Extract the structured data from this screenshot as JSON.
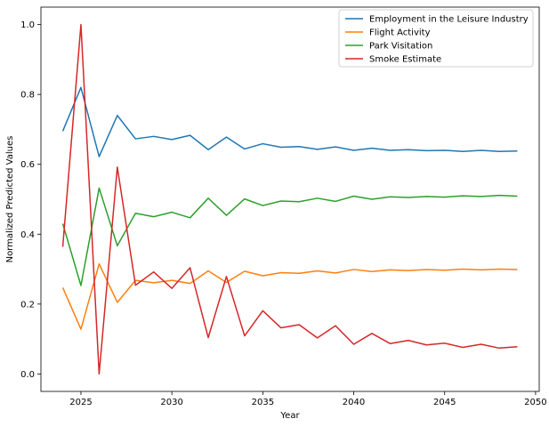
{
  "chart_data": {
    "type": "line",
    "xlabel": "Year",
    "ylabel": "Normalized Predicted Values",
    "xlim": [
      2022.8,
      2050.2
    ],
    "ylim": [
      -0.05,
      1.05
    ],
    "xticks": [
      2025,
      2030,
      2035,
      2040,
      2045,
      2050
    ],
    "yticks": [
      0.0,
      0.2,
      0.4,
      0.6,
      0.8,
      1.0
    ],
    "xtick_labels": [
      "2025",
      "2030",
      "2035",
      "2040",
      "2045",
      "2050"
    ],
    "ytick_labels": [
      "0.0",
      "0.2",
      "0.4",
      "0.6",
      "0.8",
      "1.0"
    ],
    "grid": false,
    "legend_position": "top-right",
    "x": [
      2024,
      2025,
      2026,
      2027,
      2028,
      2029,
      2030,
      2031,
      2032,
      2033,
      2034,
      2035,
      2036,
      2037,
      2038,
      2039,
      2040,
      2041,
      2042,
      2043,
      2044,
      2045,
      2046,
      2047,
      2048,
      2049
    ],
    "series": [
      {
        "name": "Employment in the Leisure Industry",
        "color": "#1f77b4",
        "values": [
          0.695,
          0.82,
          0.622,
          0.74,
          0.673,
          0.68,
          0.671,
          0.683,
          0.642,
          0.678,
          0.644,
          0.659,
          0.649,
          0.651,
          0.643,
          0.65,
          0.64,
          0.646,
          0.64,
          0.642,
          0.639,
          0.64,
          0.637,
          0.64,
          0.637,
          0.638
        ]
      },
      {
        "name": "Flight Activity",
        "color": "#ff7f0e",
        "values": [
          0.247,
          0.128,
          0.315,
          0.205,
          0.268,
          0.261,
          0.268,
          0.259,
          0.295,
          0.262,
          0.294,
          0.281,
          0.29,
          0.288,
          0.295,
          0.289,
          0.299,
          0.293,
          0.298,
          0.296,
          0.299,
          0.297,
          0.3,
          0.298,
          0.3,
          0.299
        ]
      },
      {
        "name": "Park Visitation",
        "color": "#2ca02c",
        "values": [
          0.43,
          0.253,
          0.532,
          0.367,
          0.46,
          0.45,
          0.463,
          0.447,
          0.503,
          0.454,
          0.501,
          0.482,
          0.495,
          0.493,
          0.503,
          0.494,
          0.509,
          0.5,
          0.507,
          0.505,
          0.508,
          0.506,
          0.51,
          0.508,
          0.511,
          0.509
        ]
      },
      {
        "name": "Smoke Estimate",
        "color": "#d62728",
        "values": [
          0.364,
          1.0,
          0.0,
          0.592,
          0.254,
          0.292,
          0.245,
          0.304,
          0.104,
          0.279,
          0.109,
          0.181,
          0.132,
          0.141,
          0.103,
          0.138,
          0.085,
          0.116,
          0.087,
          0.096,
          0.083,
          0.088,
          0.076,
          0.085,
          0.074,
          0.078
        ]
      }
    ]
  }
}
